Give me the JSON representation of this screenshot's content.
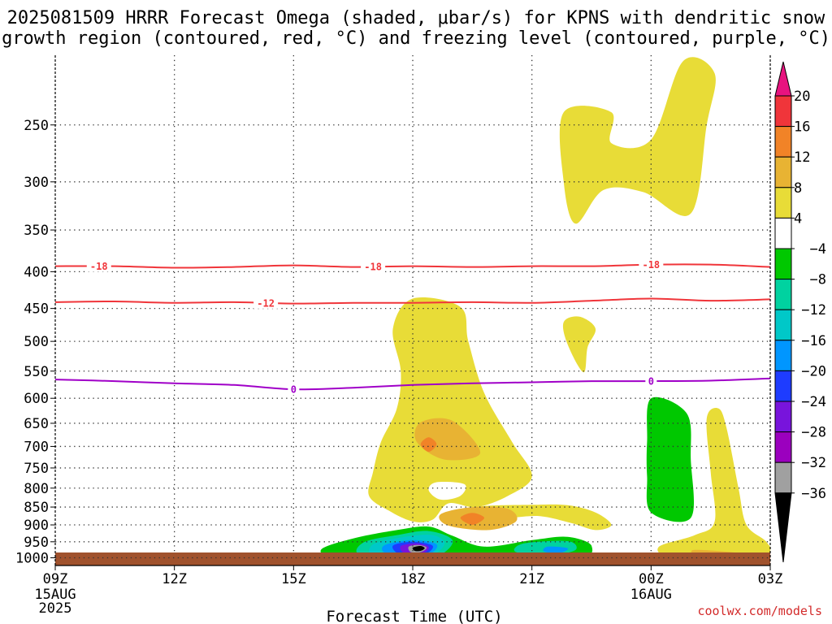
{
  "chart_data": {
    "type": "heatmap",
    "title_lines": [
      "2025081509 HRRR Forecast Omega (shaded, μbar/s) for KPNS with dendritic snow",
      "growth region (contoured, red, °C) and freezing level (contoured, purple, °C)"
    ],
    "xlabel": "Forecast Time (UTC)",
    "ylabel": "",
    "x_ticks": [
      {
        "hour": 0,
        "label": "09Z",
        "sub": [
          "15AUG",
          "2025"
        ]
      },
      {
        "hour": 3,
        "label": "12Z",
        "sub": []
      },
      {
        "hour": 6,
        "label": "15Z",
        "sub": []
      },
      {
        "hour": 9,
        "label": "18Z",
        "sub": []
      },
      {
        "hour": 12,
        "label": "21Z",
        "sub": []
      },
      {
        "hour": 15,
        "label": "00Z",
        "sub": [
          "16AUG"
        ]
      },
      {
        "hour": 18,
        "label": "03Z",
        "sub": []
      }
    ],
    "xlim_hours_after_09Z": [
      0,
      18
    ],
    "y_ticks_hPa": [
      250,
      300,
      350,
      400,
      450,
      500,
      550,
      600,
      650,
      700,
      750,
      800,
      850,
      900,
      950,
      1000
    ],
    "ylim_hPa": [
      1025,
      200
    ],
    "y_scale": "log",
    "grid": true,
    "colorbar": {
      "units": "μbar/s",
      "levels": [
        20,
        16,
        12,
        8,
        4,
        -4,
        -8,
        -12,
        -16,
        -20,
        -24,
        -28,
        -32,
        -36
      ],
      "colors": [
        "#e8137f",
        "#f0353a",
        "#f18327",
        "#e8b333",
        "#e8dc37",
        "#ffffff",
        "#00c800",
        "#00d2a0",
        "#00c8c8",
        "#0096ff",
        "#1e3cff",
        "#7814dc",
        "#9b00be",
        "#a0a0a0",
        "#000000"
      ]
    },
    "contours": [
      {
        "name": "dendritic snow growth",
        "value_label": "-18",
        "color": "#f0353a",
        "points": [
          [
            0,
            393
          ],
          [
            1.5,
            393
          ],
          [
            3,
            395
          ],
          [
            4.5,
            394
          ],
          [
            6,
            392
          ],
          [
            7.5,
            394
          ],
          [
            9,
            393
          ],
          [
            10.5,
            394
          ],
          [
            12,
            393
          ],
          [
            13.5,
            393
          ],
          [
            15,
            391
          ],
          [
            16.5,
            391
          ],
          [
            18,
            394
          ]
        ],
        "labels_at": [
          1.1,
          8.0,
          15.0
        ]
      },
      {
        "name": "dendritic snow growth",
        "value_label": "-12",
        "color": "#f0353a",
        "points": [
          [
            0,
            441
          ],
          [
            1.5,
            440
          ],
          [
            3,
            442
          ],
          [
            4.5,
            441
          ],
          [
            6,
            443
          ],
          [
            7.5,
            442
          ],
          [
            9,
            442
          ],
          [
            10.5,
            441
          ],
          [
            12,
            442
          ],
          [
            13.5,
            439
          ],
          [
            15,
            436
          ],
          [
            16.5,
            439
          ],
          [
            18,
            437
          ]
        ],
        "labels_at": [
          5.3
        ]
      },
      {
        "name": "freezing level",
        "value_label": "0",
        "color": "#a000c8",
        "points": [
          [
            0,
            565
          ],
          [
            1.5,
            568
          ],
          [
            3,
            572
          ],
          [
            4.5,
            575
          ],
          [
            6,
            583
          ],
          [
            7.5,
            580
          ],
          [
            9,
            575
          ],
          [
            10.5,
            572
          ],
          [
            12,
            570
          ],
          [
            13.5,
            568
          ],
          [
            15,
            568
          ],
          [
            16.5,
            567
          ],
          [
            18,
            563
          ]
        ],
        "labels_at": [
          6.0,
          15.0
        ]
      }
    ],
    "omega_regions": [
      {
        "value": 4,
        "color": "#e8dc37",
        "points": [
          [
            12.8,
            240
          ],
          [
            14.0,
            240
          ],
          [
            14.0,
            265
          ],
          [
            15.0,
            262
          ],
          [
            15.8,
            204
          ],
          [
            16.6,
            212
          ],
          [
            16.4,
            250
          ],
          [
            16.0,
            332
          ],
          [
            14.8,
            310
          ],
          [
            13.8,
            308
          ],
          [
            13.1,
            343
          ],
          [
            12.8,
            300
          ]
        ]
      },
      {
        "value": 4,
        "color": "#e8dc37",
        "points": [
          [
            13.2,
            462
          ],
          [
            13.6,
            480
          ],
          [
            13.4,
            510
          ],
          [
            13.3,
            552
          ],
          [
            12.9,
            505
          ],
          [
            12.8,
            470
          ]
        ]
      },
      {
        "value": 4,
        "color": "#e8dc37",
        "points": [
          [
            9.0,
            436
          ],
          [
            10.2,
            448
          ],
          [
            10.4,
            500
          ],
          [
            10.8,
            590
          ],
          [
            11.5,
            690
          ],
          [
            12.0,
            770
          ],
          [
            11.4,
            820
          ],
          [
            10.6,
            850
          ],
          [
            9.9,
            840
          ],
          [
            9.5,
            885
          ],
          [
            9.0,
            890
          ],
          [
            8.4,
            860
          ],
          [
            7.9,
            820
          ],
          [
            8.0,
            760
          ],
          [
            8.2,
            690
          ],
          [
            8.6,
            620
          ],
          [
            8.7,
            550
          ],
          [
            8.5,
            480
          ]
        ]
      },
      {
        "value": 4,
        "color": "#e8dc37",
        "points": [
          [
            10.6,
            850
          ],
          [
            12.0,
            844
          ],
          [
            12.9,
            845
          ],
          [
            13.6,
            865
          ],
          [
            14.0,
            900
          ],
          [
            13.6,
            915
          ],
          [
            13.0,
            895
          ],
          [
            12.2,
            875
          ],
          [
            11.4,
            880
          ],
          [
            10.6,
            880
          ]
        ]
      },
      {
        "value": 4,
        "color": "#e8dc37",
        "points": [
          [
            16.7,
            620
          ],
          [
            16.9,
            660
          ],
          [
            17.2,
            800
          ],
          [
            17.4,
            900
          ],
          [
            17.9,
            950
          ],
          [
            18.0,
            995
          ],
          [
            17.0,
            1010
          ],
          [
            15.5,
            1000
          ],
          [
            15.2,
            965
          ],
          [
            16.1,
            930
          ],
          [
            16.6,
            890
          ],
          [
            16.5,
            760
          ],
          [
            16.4,
            640
          ]
        ]
      },
      {
        "value": 4,
        "color": "#e8dc37",
        "points": [
          [
            0.7,
            984
          ],
          [
            1.3,
            992
          ],
          [
            2.0,
            1005
          ],
          [
            1.0,
            1007
          ],
          [
            0.7,
            1002
          ]
        ]
      },
      {
        "value": 8,
        "color": "#e8b333",
        "points": [
          [
            9.2,
            648
          ],
          [
            10.0,
            645
          ],
          [
            10.7,
            715
          ],
          [
            9.8,
            730
          ],
          [
            9.1,
            690
          ]
        ]
      },
      {
        "value": 8,
        "color": "#e8b333",
        "points": [
          [
            10.5,
            850
          ],
          [
            11.4,
            855
          ],
          [
            11.6,
            890
          ],
          [
            10.9,
            915
          ],
          [
            9.9,
            902
          ],
          [
            9.7,
            870
          ]
        ]
      },
      {
        "value": 8,
        "color": "#e8b333",
        "points": [
          [
            16.1,
            975
          ],
          [
            17.6,
            990
          ],
          [
            17.3,
            1000
          ],
          [
            16.3,
            1000
          ]
        ]
      },
      {
        "value": 12,
        "color": "#f18327",
        "points": [
          [
            9.4,
            680
          ],
          [
            9.6,
            695
          ],
          [
            9.4,
            712
          ],
          [
            9.2,
            695
          ]
        ]
      },
      {
        "value": 12,
        "color": "#f18327",
        "points": [
          [
            10.5,
            866
          ],
          [
            10.8,
            880
          ],
          [
            10.5,
            900
          ],
          [
            10.2,
            880
          ]
        ]
      },
      {
        "value": 0,
        "color": "#ffffff",
        "points": [
          [
            9.6,
            785
          ],
          [
            10.3,
            790
          ],
          [
            10.2,
            820
          ],
          [
            9.7,
            830
          ],
          [
            9.4,
            805
          ]
        ]
      },
      {
        "value": -4,
        "color": "#00c800",
        "points": [
          [
            15.0,
            600
          ],
          [
            15.9,
            630
          ],
          [
            16.0,
            730
          ],
          [
            16.0,
            880
          ],
          [
            15.0,
            865
          ],
          [
            14.9,
            770
          ],
          [
            14.9,
            690
          ]
        ]
      },
      {
        "value": -4,
        "color": "#00c800",
        "points": [
          [
            7.5,
            940
          ],
          [
            8.6,
            915
          ],
          [
            9.4,
            905
          ],
          [
            10.0,
            932
          ],
          [
            10.8,
            965
          ],
          [
            12.0,
            945
          ],
          [
            12.9,
            935
          ],
          [
            13.5,
            962
          ],
          [
            13.1,
            1007
          ],
          [
            10.5,
            1013
          ],
          [
            8.0,
            1012
          ],
          [
            7.0,
            1005
          ],
          [
            6.7,
            973
          ]
        ]
      },
      {
        "value": -8,
        "color": "#00d2a0",
        "points": [
          [
            7.8,
            950
          ],
          [
            8.6,
            930
          ],
          [
            9.4,
            918
          ],
          [
            10.0,
            945
          ],
          [
            9.7,
            990
          ],
          [
            9.0,
            1005
          ],
          [
            8.2,
            1003
          ],
          [
            7.6,
            985
          ]
        ]
      },
      {
        "value": -8,
        "color": "#00d2a0",
        "points": [
          [
            11.8,
            955
          ],
          [
            12.9,
            948
          ],
          [
            13.1,
            975
          ],
          [
            12.5,
            990
          ],
          [
            11.6,
            982
          ]
        ]
      },
      {
        "value": -12,
        "color": "#00c8c8",
        "points": [
          [
            8.0,
            958
          ],
          [
            8.8,
            935
          ],
          [
            9.5,
            930
          ],
          [
            9.8,
            955
          ],
          [
            9.5,
            990
          ],
          [
            8.8,
            1000
          ],
          [
            8.0,
            995
          ]
        ]
      },
      {
        "value": -16,
        "color": "#0096ff",
        "points": [
          [
            8.3,
            960
          ],
          [
            9.0,
            945
          ],
          [
            9.6,
            958
          ],
          [
            9.4,
            990
          ],
          [
            8.8,
            995
          ],
          [
            8.3,
            985
          ]
        ]
      },
      {
        "value": -16,
        "color": "#0096ff",
        "points": [
          [
            12.4,
            965
          ],
          [
            12.9,
            970
          ],
          [
            12.7,
            985
          ],
          [
            12.3,
            980
          ]
        ]
      },
      {
        "value": -20,
        "color": "#1e3cff",
        "points": [
          [
            8.5,
            962
          ],
          [
            9.0,
            950
          ],
          [
            9.5,
            962
          ],
          [
            9.3,
            988
          ],
          [
            8.7,
            990
          ]
        ]
      },
      {
        "value": -24,
        "color": "#7814dc",
        "points": [
          [
            8.7,
            963
          ],
          [
            9.1,
            955
          ],
          [
            9.4,
            966
          ],
          [
            9.25,
            985
          ],
          [
            8.8,
            986
          ]
        ]
      },
      {
        "value": -32,
        "color": "#a0a0a0",
        "points": [
          [
            8.9,
            965
          ],
          [
            9.15,
            960
          ],
          [
            9.35,
            968
          ],
          [
            9.2,
            982
          ],
          [
            8.95,
            982
          ]
        ]
      },
      {
        "value": -36,
        "color": "#000000",
        "points": [
          [
            9.0,
            968
          ],
          [
            9.2,
            963
          ],
          [
            9.3,
            970
          ],
          [
            9.2,
            978
          ],
          [
            9.05,
            978
          ]
        ]
      }
    ],
    "surface_color": "#a0522d",
    "credit": "coolwx.com/models"
  }
}
